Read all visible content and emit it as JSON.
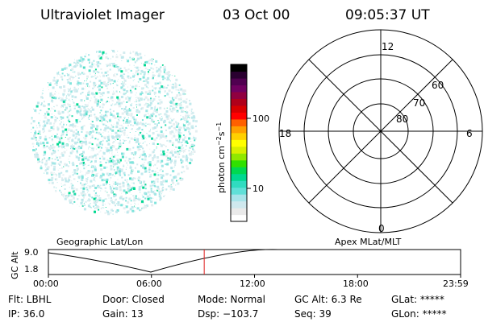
{
  "header": {
    "instrument": "Ultraviolet Imager",
    "date": "03 Oct 00",
    "time": "09:05:37 UT"
  },
  "colorbar": {
    "label_base": "photon cm",
    "label_sup_1": "−2",
    "label_mid": "s",
    "label_sup_2": "−1",
    "tick_labels": [
      "100",
      "10"
    ],
    "colors": [
      "#ffffff",
      "#eaeaea",
      "#cfe8ee",
      "#a8e4ea",
      "#60e0d8",
      "#30dcc0",
      "#00d890",
      "#00d850",
      "#30e000",
      "#90e800",
      "#d8f000",
      "#ffff00",
      "#ffd000",
      "#ffa000",
      "#ff6000",
      "#ff0000",
      "#d80000",
      "#b0001a",
      "#900040",
      "#700060",
      "#500050",
      "#2a0030",
      "#000000"
    ]
  },
  "polar_plot": {
    "mlt_labels": {
      "top": "12",
      "bottom": "0",
      "left": "18",
      "right": "6"
    },
    "lat_labels": [
      "60",
      "70",
      "80"
    ]
  },
  "timeline": {
    "left_title": "Geographic Lat/Lon",
    "right_title": "Apex MLat/MLT",
    "y_axis_label": "GC Alt",
    "y_ticks": [
      "9.0",
      "1.8"
    ],
    "x_ticks": [
      "00:00",
      "06:00",
      "12:00",
      "18:00",
      "23:59"
    ],
    "current_time_fraction": 0.378
  },
  "footer": {
    "row1": {
      "flt": "Flt: LBHL",
      "door": "Door: Closed",
      "mode": "Mode: Normal",
      "gc_alt": "GC Alt: 6.3 Re",
      "glat": "GLat: *****"
    },
    "row2": {
      "ip": "IP: 36.0",
      "gain": "Gain: 13",
      "dsp": "Dsp: −103.7",
      "seq": "Seq: 39",
      "glon": "GLon: *****"
    }
  }
}
